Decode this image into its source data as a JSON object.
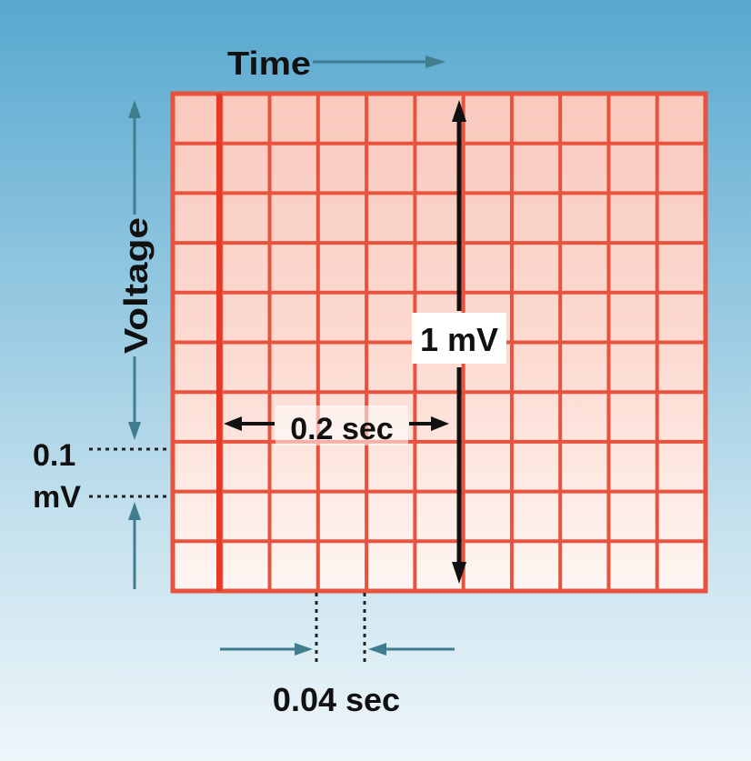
{
  "labels": {
    "time": "Time",
    "voltage": "Voltage",
    "one_mv": "1 mV",
    "point_two_sec": "0.2 sec",
    "point_one": "0.1",
    "mv_unit": "mV",
    "point_zero_four_sec": "0.04 sec"
  },
  "colors": {
    "background_top": "#57a8cf",
    "background_bottom": "#eef6fa",
    "grid_fill_top": "#f9c9bd",
    "grid_fill_bottom": "#fff6f3",
    "grid_line": "#e8533f",
    "guide_arrow": "#3f7d8f",
    "dark_arrow": "#111111"
  }
}
